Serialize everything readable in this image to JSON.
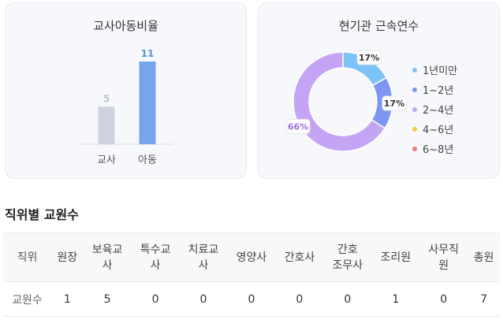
{
  "ratio_card": {
    "title": "교사아동비율"
  },
  "tenure_card": {
    "title": "현기관 근속연수"
  },
  "chart_data": [
    {
      "type": "bar",
      "categories": [
        "교사",
        "아동"
      ],
      "values": [
        5,
        11
      ],
      "value_labels": [
        "5",
        "11"
      ],
      "ylim": [
        0,
        11
      ],
      "colors": [
        "#ced3e1",
        "#75a6ec"
      ],
      "label_colors": [
        "#b9c0d3",
        "#5f8fe0"
      ],
      "grid": false
    },
    {
      "type": "pie",
      "donut": true,
      "categories": [
        "1년미만",
        "1~2년",
        "2~4년",
        "4~6년",
        "6~8년"
      ],
      "values": [
        17,
        17,
        66,
        0,
        0
      ],
      "value_labels": [
        "17%",
        "17%",
        "66%",
        "",
        ""
      ],
      "colors": [
        "#7ec3f7",
        "#7e96f2",
        "#c4a4f4",
        "#f9c64a",
        "#f37a7a"
      ],
      "legend_placement": "right"
    }
  ],
  "staff_section": {
    "title": "직위별 교원수",
    "headers": [
      "직위",
      "원장",
      "보육교\n사",
      "특수교\n사",
      "치료교\n사",
      "영양사",
      "간호사",
      "간호\n조무사",
      "조리원",
      "사무직\n원",
      "총원"
    ],
    "row_label": "교원수",
    "values": [
      "1",
      "5",
      "0",
      "0",
      "0",
      "0",
      "0",
      "1",
      "0",
      "7"
    ]
  }
}
